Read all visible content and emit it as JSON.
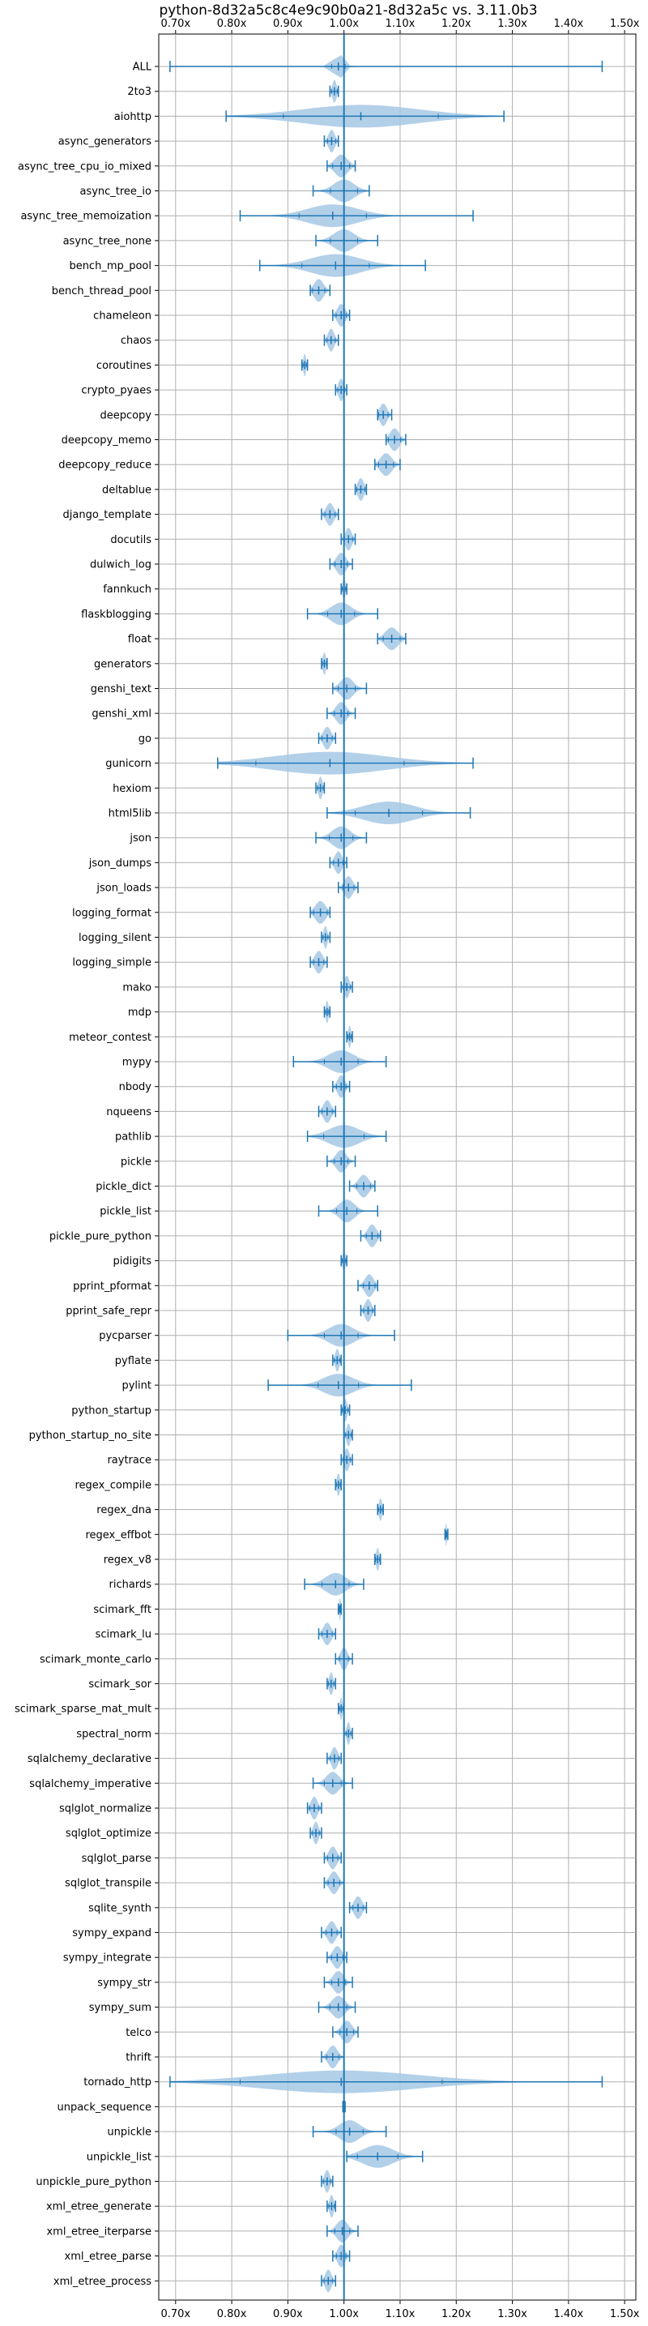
{
  "chart_data": {
    "type": "violin",
    "title": "python-8d32a5c8c4e9c90b0a21-8d32a5c vs. 3.11.0b3",
    "xlabel": "",
    "ylabel": "",
    "xlim": [
      0.67,
      1.52
    ],
    "xticks": [
      0.7,
      0.8,
      0.9,
      1.0,
      1.1,
      1.2,
      1.3,
      1.4,
      1.5
    ],
    "xtick_labels": [
      "0.70x",
      "0.80x",
      "0.90x",
      "1.00x",
      "1.10x",
      "1.20x",
      "1.30x",
      "1.40x",
      "1.50x"
    ],
    "reference_line": 1.0,
    "grid": true,
    "colors": {
      "violin_fill": "#a6c8e5",
      "line": "#1f77b4",
      "grid": "#b0b0b0",
      "reference": "#1f77b4"
    },
    "benchmarks": [
      {
        "name": "ALL",
        "min": 0.69,
        "max": 1.46,
        "median": 0.99,
        "width": 0.02
      },
      {
        "name": "2to3",
        "min": 0.975,
        "max": 0.99,
        "median": 0.983,
        "width": 0.008
      },
      {
        "name": "aiohttp",
        "min": 0.79,
        "max": 1.285,
        "median": 1.03,
        "width": 0.23
      },
      {
        "name": "async_generators",
        "min": 0.965,
        "max": 0.99,
        "median": 0.978,
        "width": 0.012
      },
      {
        "name": "async_tree_cpu_io_mixed",
        "min": 0.97,
        "max": 1.02,
        "median": 0.995,
        "width": 0.025
      },
      {
        "name": "async_tree_io",
        "min": 0.945,
        "max": 1.045,
        "median": 1.0,
        "width": 0.04
      },
      {
        "name": "async_tree_memoization",
        "min": 0.815,
        "max": 1.23,
        "median": 0.98,
        "width": 0.1
      },
      {
        "name": "async_tree_none",
        "min": 0.95,
        "max": 1.06,
        "median": 1.0,
        "width": 0.04
      },
      {
        "name": "bench_mp_pool",
        "min": 0.85,
        "max": 1.145,
        "median": 0.985,
        "width": 0.1
      },
      {
        "name": "bench_thread_pool",
        "min": 0.94,
        "max": 0.975,
        "median": 0.955,
        "width": 0.018
      },
      {
        "name": "chameleon",
        "min": 0.98,
        "max": 1.01,
        "median": 0.995,
        "width": 0.015
      },
      {
        "name": "chaos",
        "min": 0.965,
        "max": 0.99,
        "median": 0.977,
        "width": 0.012
      },
      {
        "name": "coroutines",
        "min": 0.925,
        "max": 0.935,
        "median": 0.93,
        "width": 0.005
      },
      {
        "name": "crypto_pyaes",
        "min": 0.985,
        "max": 1.005,
        "median": 0.995,
        "width": 0.01
      },
      {
        "name": "deepcopy",
        "min": 1.06,
        "max": 1.085,
        "median": 1.07,
        "width": 0.014
      },
      {
        "name": "deepcopy_memo",
        "min": 1.075,
        "max": 1.11,
        "median": 1.09,
        "width": 0.018
      },
      {
        "name": "deepcopy_reduce",
        "min": 1.055,
        "max": 1.1,
        "median": 1.075,
        "width": 0.022
      },
      {
        "name": "deltablue",
        "min": 1.02,
        "max": 1.04,
        "median": 1.03,
        "width": 0.012
      },
      {
        "name": "django_template",
        "min": 0.96,
        "max": 0.99,
        "median": 0.975,
        "width": 0.015
      },
      {
        "name": "docutils",
        "min": 0.995,
        "max": 1.02,
        "median": 1.008,
        "width": 0.012
      },
      {
        "name": "dulwich_log",
        "min": 0.975,
        "max": 1.015,
        "median": 0.995,
        "width": 0.018
      },
      {
        "name": "fannkuch",
        "min": 0.995,
        "max": 1.005,
        "median": 1.0,
        "width": 0.005
      },
      {
        "name": "flaskblogging",
        "min": 0.935,
        "max": 1.06,
        "median": 0.995,
        "width": 0.04
      },
      {
        "name": "float",
        "min": 1.06,
        "max": 1.11,
        "median": 1.085,
        "width": 0.025
      },
      {
        "name": "generators",
        "min": 0.96,
        "max": 0.97,
        "median": 0.965,
        "width": 0.006
      },
      {
        "name": "genshi_text",
        "min": 0.98,
        "max": 1.04,
        "median": 1.005,
        "width": 0.025
      },
      {
        "name": "genshi_xml",
        "min": 0.97,
        "max": 1.02,
        "median": 0.995,
        "width": 0.02
      },
      {
        "name": "go",
        "min": 0.955,
        "max": 0.985,
        "median": 0.97,
        "width": 0.015
      },
      {
        "name": "gunicorn",
        "min": 0.775,
        "max": 1.23,
        "median": 0.975,
        "width": 0.22
      },
      {
        "name": "hexiom",
        "min": 0.95,
        "max": 0.965,
        "median": 0.958,
        "width": 0.008
      },
      {
        "name": "html5lib",
        "min": 0.97,
        "max": 1.225,
        "median": 1.08,
        "width": 0.1
      },
      {
        "name": "json",
        "min": 0.95,
        "max": 1.04,
        "median": 0.995,
        "width": 0.035
      },
      {
        "name": "json_dumps",
        "min": 0.975,
        "max": 1.005,
        "median": 0.99,
        "width": 0.014
      },
      {
        "name": "json_loads",
        "min": 0.99,
        "max": 1.025,
        "median": 1.008,
        "width": 0.016
      },
      {
        "name": "logging_format",
        "min": 0.94,
        "max": 0.975,
        "median": 0.958,
        "width": 0.02
      },
      {
        "name": "logging_silent",
        "min": 0.96,
        "max": 0.975,
        "median": 0.967,
        "width": 0.007
      },
      {
        "name": "logging_simple",
        "min": 0.94,
        "max": 0.97,
        "median": 0.955,
        "width": 0.015
      },
      {
        "name": "mako",
        "min": 0.995,
        "max": 1.015,
        "median": 1.005,
        "width": 0.01
      },
      {
        "name": "mdp",
        "min": 0.965,
        "max": 0.975,
        "median": 0.97,
        "width": 0.005
      },
      {
        "name": "meteor_contest",
        "min": 1.005,
        "max": 1.015,
        "median": 1.01,
        "width": 0.005
      },
      {
        "name": "mypy",
        "min": 0.91,
        "max": 1.075,
        "median": 0.995,
        "width": 0.05
      },
      {
        "name": "nbody",
        "min": 0.98,
        "max": 1.01,
        "median": 0.995,
        "width": 0.014
      },
      {
        "name": "nqueens",
        "min": 0.955,
        "max": 0.985,
        "median": 0.97,
        "width": 0.015
      },
      {
        "name": "pathlib",
        "min": 0.935,
        "max": 1.075,
        "median": 1.0,
        "width": 0.06
      },
      {
        "name": "pickle",
        "min": 0.97,
        "max": 1.02,
        "median": 0.995,
        "width": 0.02
      },
      {
        "name": "pickle_dict",
        "min": 1.01,
        "max": 1.055,
        "median": 1.035,
        "width": 0.02
      },
      {
        "name": "pickle_list",
        "min": 0.955,
        "max": 1.06,
        "median": 1.005,
        "width": 0.03
      },
      {
        "name": "pickle_pure_python",
        "min": 1.03,
        "max": 1.065,
        "median": 1.05,
        "width": 0.017
      },
      {
        "name": "pidigits",
        "min": 0.995,
        "max": 1.005,
        "median": 1.0,
        "width": 0.005
      },
      {
        "name": "pprint_pformat",
        "min": 1.025,
        "max": 1.06,
        "median": 1.045,
        "width": 0.017
      },
      {
        "name": "pprint_safe_repr",
        "min": 1.03,
        "max": 1.055,
        "median": 1.043,
        "width": 0.013
      },
      {
        "name": "pycparser",
        "min": 0.9,
        "max": 1.09,
        "median": 0.995,
        "width": 0.05
      },
      {
        "name": "pyflate",
        "min": 0.98,
        "max": 0.995,
        "median": 0.988,
        "width": 0.008
      },
      {
        "name": "pylint",
        "min": 0.865,
        "max": 1.12,
        "median": 0.99,
        "width": 0.06
      },
      {
        "name": "python_startup",
        "min": 0.995,
        "max": 1.01,
        "median": 1.002,
        "width": 0.008
      },
      {
        "name": "python_startup_no_site",
        "min": 1.0,
        "max": 1.015,
        "median": 1.008,
        "width": 0.008
      },
      {
        "name": "raytrace",
        "min": 0.995,
        "max": 1.015,
        "median": 1.005,
        "width": 0.01
      },
      {
        "name": "regex_compile",
        "min": 0.985,
        "max": 0.995,
        "median": 0.99,
        "width": 0.006
      },
      {
        "name": "regex_dna",
        "min": 1.06,
        "max": 1.07,
        "median": 1.065,
        "width": 0.006
      },
      {
        "name": "regex_effbot",
        "min": 1.18,
        "max": 1.185,
        "median": 1.182,
        "width": 0.003
      },
      {
        "name": "regex_v8",
        "min": 1.055,
        "max": 1.065,
        "median": 1.06,
        "width": 0.006
      },
      {
        "name": "richards",
        "min": 0.93,
        "max": 1.035,
        "median": 0.985,
        "width": 0.04
      },
      {
        "name": "scimark_fft",
        "min": 0.99,
        "max": 0.995,
        "median": 0.993,
        "width": 0.003
      },
      {
        "name": "scimark_lu",
        "min": 0.955,
        "max": 0.985,
        "median": 0.97,
        "width": 0.015
      },
      {
        "name": "scimark_monte_carlo",
        "min": 0.985,
        "max": 1.015,
        "median": 1.0,
        "width": 0.013
      },
      {
        "name": "scimark_sor",
        "min": 0.97,
        "max": 0.985,
        "median": 0.977,
        "width": 0.008
      },
      {
        "name": "scimark_sparse_mat_mult",
        "min": 0.99,
        "max": 1.0,
        "median": 0.995,
        "width": 0.005
      },
      {
        "name": "spectral_norm",
        "min": 1.0,
        "max": 1.015,
        "median": 1.008,
        "width": 0.007
      },
      {
        "name": "sqlalchemy_declarative",
        "min": 0.97,
        "max": 0.995,
        "median": 0.983,
        "width": 0.012
      },
      {
        "name": "sqlalchemy_imperative",
        "min": 0.945,
        "max": 1.015,
        "median": 0.98,
        "width": 0.025
      },
      {
        "name": "sqlglot_normalize",
        "min": 0.935,
        "max": 0.96,
        "median": 0.947,
        "width": 0.013
      },
      {
        "name": "sqlglot_optimize",
        "min": 0.94,
        "max": 0.96,
        "median": 0.95,
        "width": 0.01
      },
      {
        "name": "sqlglot_parse",
        "min": 0.965,
        "max": 0.995,
        "median": 0.98,
        "width": 0.015
      },
      {
        "name": "sqlglot_transpile",
        "min": 0.965,
        "max": 1.0,
        "median": 0.982,
        "width": 0.017
      },
      {
        "name": "sqlite_synth",
        "min": 1.01,
        "max": 1.04,
        "median": 1.025,
        "width": 0.015
      },
      {
        "name": "sympy_expand",
        "min": 0.96,
        "max": 0.995,
        "median": 0.978,
        "width": 0.016
      },
      {
        "name": "sympy_integrate",
        "min": 0.97,
        "max": 1.005,
        "median": 0.988,
        "width": 0.017
      },
      {
        "name": "sympy_str",
        "min": 0.965,
        "max": 1.015,
        "median": 0.99,
        "width": 0.02
      },
      {
        "name": "sympy_sum",
        "min": 0.955,
        "max": 1.02,
        "median": 0.99,
        "width": 0.025
      },
      {
        "name": "telco",
        "min": 0.98,
        "max": 1.025,
        "median": 1.005,
        "width": 0.02
      },
      {
        "name": "thrift",
        "min": 0.96,
        "max": 1.0,
        "median": 0.98,
        "width": 0.018
      },
      {
        "name": "tornado_http",
        "min": 0.69,
        "max": 1.46,
        "median": 0.995,
        "width": 0.3
      },
      {
        "name": "unpack_sequence",
        "min": 0.998,
        "max": 1.002,
        "median": 1.0,
        "width": 0.002
      },
      {
        "name": "unpickle",
        "min": 0.945,
        "max": 1.075,
        "median": 1.01,
        "width": 0.04
      },
      {
        "name": "unpickle_list",
        "min": 1.005,
        "max": 1.14,
        "median": 1.06,
        "width": 0.06
      },
      {
        "name": "unpickle_pure_python",
        "min": 0.96,
        "max": 0.98,
        "median": 0.97,
        "width": 0.01
      },
      {
        "name": "xml_etree_generate",
        "min": 0.97,
        "max": 0.985,
        "median": 0.978,
        "width": 0.008
      },
      {
        "name": "xml_etree_iterparse",
        "min": 0.97,
        "max": 1.025,
        "median": 0.997,
        "width": 0.022
      },
      {
        "name": "xml_etree_parse",
        "min": 0.98,
        "max": 1.01,
        "median": 0.995,
        "width": 0.014
      },
      {
        "name": "xml_etree_process",
        "min": 0.96,
        "max": 0.985,
        "median": 0.972,
        "width": 0.012
      }
    ]
  }
}
